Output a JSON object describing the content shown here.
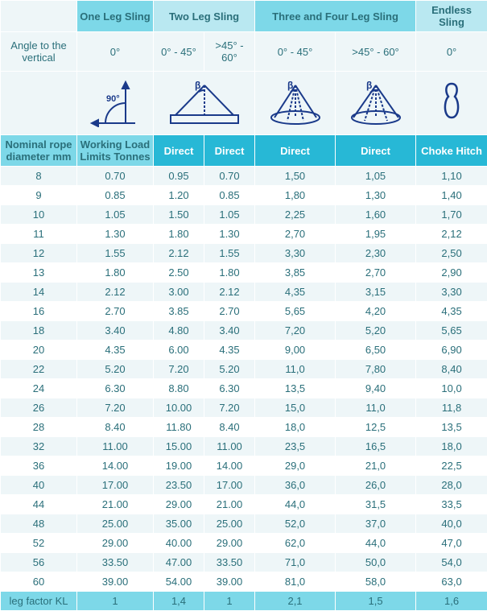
{
  "slingHeaders": {
    "oneLeg": "One Leg Sling",
    "twoLeg": "Two Leg Sling",
    "threeFourLeg": "Three and Four Leg Sling",
    "endless": "Endless Sling"
  },
  "angleLabel": "Angle to the vertical",
  "angles": {
    "oneLeg": "0°",
    "twoLeg1": "0° - 45°",
    "twoLeg2": ">45° - 60°",
    "tf1": "0° - 45°",
    "tf2": ">45° - 60°",
    "endless": "0°"
  },
  "diagramLabels": {
    "ninety": "90°",
    "beta": "β"
  },
  "columnHeaders": {
    "nominal": "Nominal rope diameter mm",
    "wll": "Working Load Limits Tonnes",
    "direct": "Direct",
    "choke": "Choke Hitch"
  },
  "colors": {
    "diagramStroke": "#1a3a8a"
  },
  "rows": [
    {
      "d": "8",
      "v": [
        "0.70",
        "0.95",
        "0.70",
        "1,50",
        "1,05",
        "1,10"
      ]
    },
    {
      "d": "9",
      "v": [
        "0.85",
        "1.20",
        "0.85",
        "1,80",
        "1,30",
        "1,40"
      ]
    },
    {
      "d": "10",
      "v": [
        "1.05",
        "1.50",
        "1.05",
        "2,25",
        "1,60",
        "1,70"
      ]
    },
    {
      "d": "11",
      "v": [
        "1.30",
        "1.80",
        "1.30",
        "2,70",
        "1,95",
        "2,12"
      ]
    },
    {
      "d": "12",
      "v": [
        "1.55",
        "2.12",
        "1.55",
        "3,30",
        "2,30",
        "2,50"
      ]
    },
    {
      "d": "13",
      "v": [
        "1.80",
        "2.50",
        "1.80",
        "3,85",
        "2,70",
        "2,90"
      ]
    },
    {
      "d": "14",
      "v": [
        "2.12",
        "3.00",
        "2.12",
        "4,35",
        "3,15",
        "3,30"
      ]
    },
    {
      "d": "16",
      "v": [
        "2.70",
        "3.85",
        "2.70",
        "5,65",
        "4,20",
        "4,35"
      ]
    },
    {
      "d": "18",
      "v": [
        "3.40",
        "4.80",
        "3.40",
        "7,20",
        "5,20",
        "5,65"
      ]
    },
    {
      "d": "20",
      "v": [
        "4.35",
        "6.00",
        "4.35",
        "9,00",
        "6,50",
        "6,90"
      ]
    },
    {
      "d": "22",
      "v": [
        "5.20",
        "7.20",
        "5.20",
        "11,0",
        "7,80",
        "8,40"
      ]
    },
    {
      "d": "24",
      "v": [
        "6.30",
        "8.80",
        "6.30",
        "13,5",
        "9,40",
        "10,0"
      ]
    },
    {
      "d": "26",
      "v": [
        "7.20",
        "10.00",
        "7.20",
        "15,0",
        "11,0",
        "11,8"
      ]
    },
    {
      "d": "28",
      "v": [
        "8.40",
        "11.80",
        "8.40",
        "18,0",
        "12,5",
        "13,5"
      ]
    },
    {
      "d": "32",
      "v": [
        "11.00",
        "15.00",
        "11.00",
        "23,5",
        "16,5",
        "18,0"
      ]
    },
    {
      "d": "36",
      "v": [
        "14.00",
        "19.00",
        "14.00",
        "29,0",
        "21,0",
        "22,5"
      ]
    },
    {
      "d": "40",
      "v": [
        "17.00",
        "23.50",
        "17.00",
        "36,0",
        "26,0",
        "28,0"
      ]
    },
    {
      "d": "44",
      "v": [
        "21.00",
        "29.00",
        "21.00",
        "44,0",
        "31,5",
        "33,5"
      ]
    },
    {
      "d": "48",
      "v": [
        "25.00",
        "35.00",
        "25.00",
        "52,0",
        "37,0",
        "40,0"
      ]
    },
    {
      "d": "52",
      "v": [
        "29.00",
        "40.00",
        "29.00",
        "62,0",
        "44,0",
        "47,0"
      ]
    },
    {
      "d": "56",
      "v": [
        "33.50",
        "47.00",
        "33.50",
        "71,0",
        "50,0",
        "54,0"
      ]
    },
    {
      "d": "60",
      "v": [
        "39.00",
        "54.00",
        "39.00",
        "81,0",
        "58,0",
        "63,0"
      ]
    }
  ],
  "legFactor": {
    "label": "leg factor KL",
    "values": [
      "1",
      "1,4",
      "1",
      "2,1",
      "1,5",
      "1,6"
    ]
  }
}
